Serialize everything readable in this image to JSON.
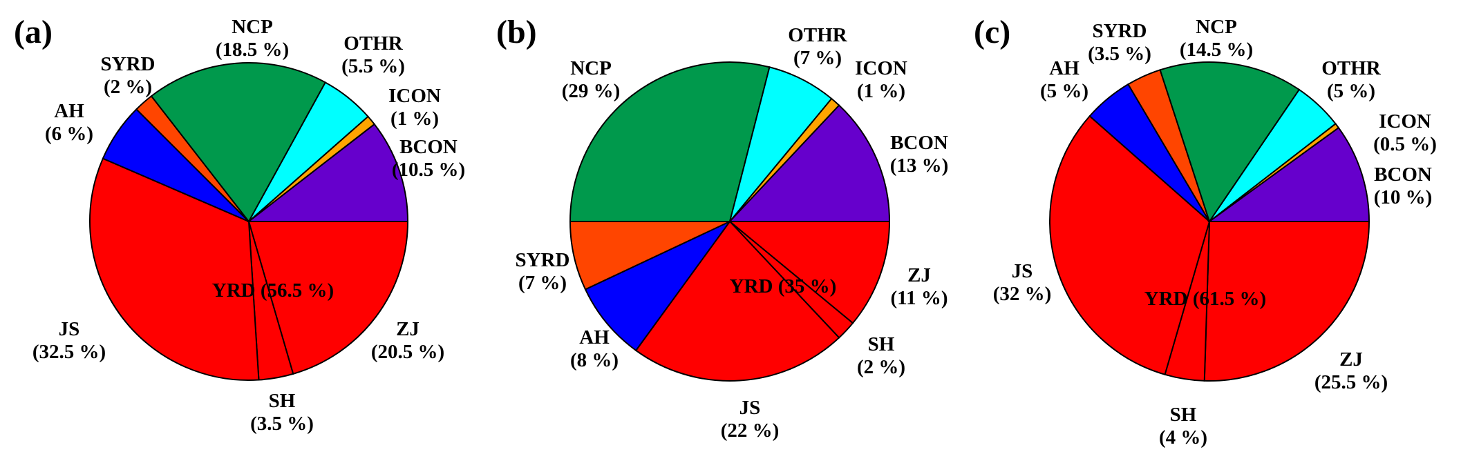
{
  "chart_data": [
    {
      "type": "pie",
      "panel": "(a)",
      "center_label": "YRD (56.5 %)",
      "slices": [
        {
          "name": "ZJ",
          "pct": "(20.5 %)",
          "value": 20.5,
          "color": "#FF0000"
        },
        {
          "name": "SH",
          "pct": "(3.5 %)",
          "value": 3.5,
          "color": "#FF0000"
        },
        {
          "name": "JS",
          "pct": "(32.5 %)",
          "value": 32.5,
          "color": "#FF0000"
        },
        {
          "name": "AH",
          "pct": "(6 %)",
          "value": 6,
          "color": "#0000FF"
        },
        {
          "name": "SYRD",
          "pct": "(2 %)",
          "value": 2,
          "color": "#FF4500"
        },
        {
          "name": "NCP",
          "pct": "(18.5 %)",
          "value": 18.5,
          "color": "#00994C"
        },
        {
          "name": "OTHR",
          "pct": "(5.5 %)",
          "value": 5.5,
          "color": "#00FFFF"
        },
        {
          "name": "ICON",
          "pct": "(1 %)",
          "value": 1,
          "color": "#FFA500"
        },
        {
          "name": "BCON",
          "pct": "(10.5 %)",
          "value": 10.5,
          "color": "#6600CC"
        }
      ]
    },
    {
      "type": "pie",
      "panel": "(b)",
      "center_label": "YRD (35 %)",
      "slices": [
        {
          "name": "ZJ",
          "pct": "(11 %)",
          "value": 11,
          "color": "#FF0000"
        },
        {
          "name": "SH",
          "pct": "(2 %)",
          "value": 2,
          "color": "#FF0000"
        },
        {
          "name": "JS",
          "pct": "(22 %)",
          "value": 22,
          "color": "#FF0000"
        },
        {
          "name": "AH",
          "pct": "(8 %)",
          "value": 8,
          "color": "#0000FF"
        },
        {
          "name": "SYRD",
          "pct": "(7 %)",
          "value": 7,
          "color": "#FF4500"
        },
        {
          "name": "NCP",
          "pct": "(29 %)",
          "value": 29,
          "color": "#00994C"
        },
        {
          "name": "OTHR",
          "pct": "(7 %)",
          "value": 7,
          "color": "#00FFFF"
        },
        {
          "name": "ICON",
          "pct": "(1 %)",
          "value": 1,
          "color": "#FFA500"
        },
        {
          "name": "BCON",
          "pct": "(13 %)",
          "value": 13,
          "color": "#6600CC"
        }
      ]
    },
    {
      "type": "pie",
      "panel": "(c)",
      "center_label": "YRD (61.5 %)",
      "slices": [
        {
          "name": "ZJ",
          "pct": "(25.5 %)",
          "value": 25.5,
          "color": "#FF0000"
        },
        {
          "name": "SH",
          "pct": "(4 %)",
          "value": 4,
          "color": "#FF0000"
        },
        {
          "name": "JS",
          "pct": "(32 %)",
          "value": 32,
          "color": "#FF0000"
        },
        {
          "name": "AH",
          "pct": "(5 %)",
          "value": 5,
          "color": "#0000FF"
        },
        {
          "name": "SYRD",
          "pct": "(3.5 %)",
          "value": 3.5,
          "color": "#FF4500"
        },
        {
          "name": "NCP",
          "pct": "(14.5 %)",
          "value": 14.5,
          "color": "#00994C"
        },
        {
          "name": "OTHR",
          "pct": "(5 %)",
          "value": 5,
          "color": "#00FFFF"
        },
        {
          "name": "ICON",
          "pct": "(0.5 %)",
          "value": 0.5,
          "color": "#FFA500"
        },
        {
          "name": "BCON",
          "pct": "(10 %)",
          "value": 10,
          "color": "#6600CC"
        }
      ]
    }
  ]
}
